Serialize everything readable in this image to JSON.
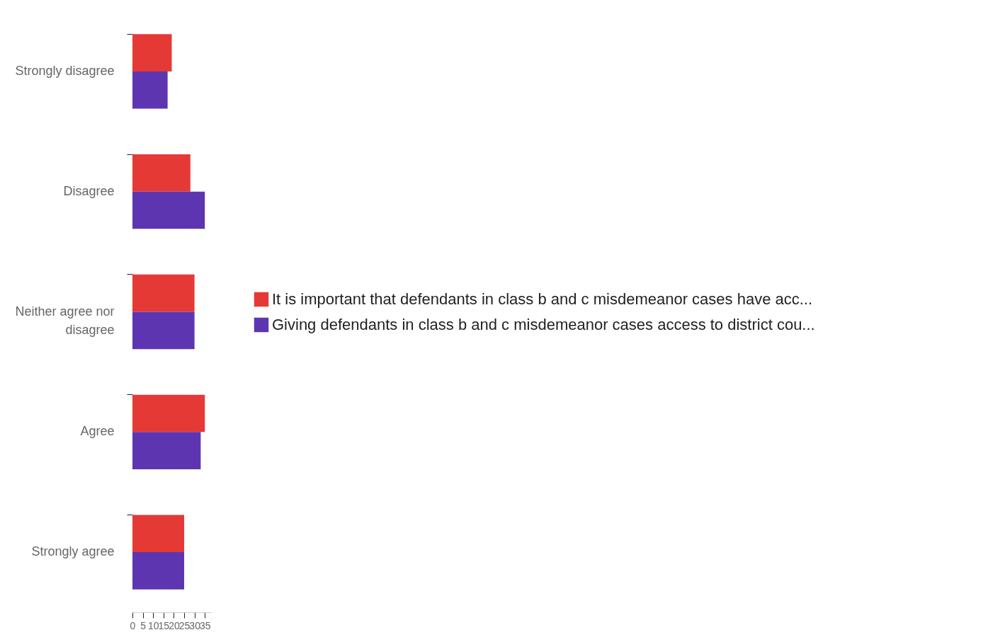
{
  "chart_data": {
    "type": "bar",
    "orientation": "horizontal",
    "categories": [
      "Strongly disagree",
      "Disagree",
      "Neither agree nor disagree",
      "Agree",
      "Strongly agree"
    ],
    "series": [
      {
        "name": "It is important that defendants in class b and c misdemeanor cases have acc...",
        "color": "#e53935",
        "values": [
          19,
          28,
          30,
          35,
          25
        ]
      },
      {
        "name": "Giving defendants in class b and c misdemeanor cases access to district cou...",
        "color": "#5e35b1",
        "values": [
          17,
          35,
          30,
          33,
          25
        ]
      }
    ],
    "xlim": [
      0,
      38
    ],
    "xticks": [
      0,
      5,
      10,
      15,
      20,
      25,
      30,
      35
    ],
    "grid": false,
    "legend": "right"
  }
}
